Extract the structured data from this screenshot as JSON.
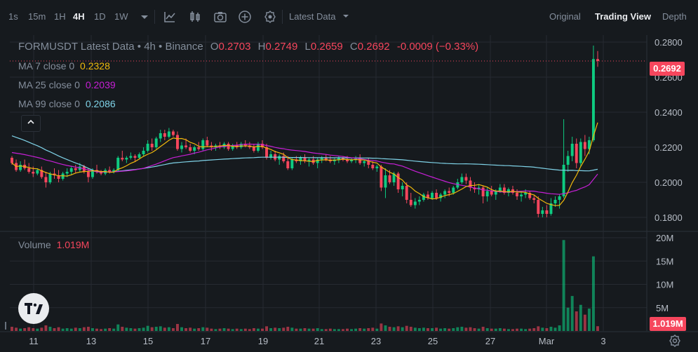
{
  "toolbar": {
    "intervals": [
      "1s",
      "15m",
      "1H",
      "4H",
      "1D",
      "1W"
    ],
    "active_interval": "4H",
    "dropdown_icon": "chevron-down-icon",
    "tools": [
      "indicators-icon",
      "candle-type-icon",
      "camera-icon",
      "add-icon",
      "settings-circle-icon"
    ],
    "data_select": "Latest Data",
    "views": [
      "Original",
      "Trading View",
      "Depth"
    ],
    "active_view": "Trading View"
  },
  "legend": {
    "symbol": "FORMUSDT Latest Data",
    "timeframe": "4h",
    "exchange": "Binance",
    "o_label": "O",
    "o_value": "0.2703",
    "h_label": "H",
    "h_value": "0.2749",
    "l_label": "L",
    "l_value": "0.2659",
    "c_label": "C",
    "c_value": "0.2692",
    "change": "-0.0009 (−0.33%)"
  },
  "ma": [
    {
      "label": "MA 7 close 0",
      "value": "0.2328",
      "color": "#f0b90b"
    },
    {
      "label": "MA 25 close 0",
      "value": "0.2039",
      "color": "#c71fd6"
    },
    {
      "label": "MA 99 close 0",
      "value": "0.2086",
      "color": "#7fd3e8"
    }
  ],
  "volume": {
    "label": "Volume",
    "value": "1.019M"
  },
  "price_tag": "0.2692",
  "volume_tag": "1.019M",
  "logo": "TV",
  "chart_data": {
    "type": "candlestick",
    "price_axis": {
      "ticks": [
        "0.2800",
        "0.2600",
        "0.2400",
        "0.2200",
        "0.2000",
        "0.1800"
      ],
      "min": 0.172,
      "max": 0.284
    },
    "volume_axis": {
      "ticks": [
        "20M",
        "15M",
        "10M",
        "5M"
      ],
      "max": 20
    },
    "x_ticks": [
      "11",
      "13",
      "15",
      "17",
      "19",
      "21",
      "23",
      "25",
      "27",
      "Mar",
      "3"
    ],
    "up_color": "#0ecb81",
    "down_color": "#f6465d",
    "candles": [
      [
        0.214,
        0.215,
        0.21,
        0.211,
        0.9
      ],
      [
        0.211,
        0.213,
        0.206,
        0.207,
        0.7
      ],
      [
        0.207,
        0.212,
        0.206,
        0.21,
        0.5
      ],
      [
        0.21,
        0.213,
        0.207,
        0.208,
        0.6
      ],
      [
        0.208,
        0.211,
        0.205,
        0.206,
        0.8
      ],
      [
        0.206,
        0.209,
        0.203,
        0.205,
        0.6
      ],
      [
        0.205,
        0.208,
        0.204,
        0.207,
        0.5
      ],
      [
        0.207,
        0.209,
        0.202,
        0.203,
        0.7
      ],
      [
        0.203,
        0.206,
        0.197,
        0.2,
        1.2
      ],
      [
        0.2,
        0.206,
        0.199,
        0.205,
        0.9
      ],
      [
        0.205,
        0.208,
        0.202,
        0.204,
        0.6
      ],
      [
        0.204,
        0.207,
        0.2,
        0.202,
        0.8
      ],
      [
        0.202,
        0.206,
        0.201,
        0.205,
        0.5
      ],
      [
        0.205,
        0.208,
        0.203,
        0.206,
        0.6
      ],
      [
        0.206,
        0.209,
        0.204,
        0.208,
        0.5
      ],
      [
        0.208,
        0.21,
        0.205,
        0.207,
        0.7
      ],
      [
        0.207,
        0.211,
        0.206,
        0.209,
        0.6
      ],
      [
        0.209,
        0.21,
        0.205,
        0.206,
        0.8
      ],
      [
        0.206,
        0.208,
        0.2,
        0.203,
        0.9
      ],
      [
        0.203,
        0.208,
        0.202,
        0.207,
        0.6
      ],
      [
        0.207,
        0.21,
        0.205,
        0.206,
        0.5
      ],
      [
        0.206,
        0.207,
        0.204,
        0.205,
        0.4
      ],
      [
        0.205,
        0.208,
        0.204,
        0.207,
        0.5
      ],
      [
        0.207,
        0.209,
        0.205,
        0.206,
        0.6
      ],
      [
        0.206,
        0.208,
        0.205,
        0.207,
        0.5
      ],
      [
        0.207,
        0.215,
        0.206,
        0.214,
        1.4
      ],
      [
        0.214,
        0.218,
        0.212,
        0.213,
        0.9
      ],
      [
        0.213,
        0.215,
        0.211,
        0.214,
        0.7
      ],
      [
        0.214,
        0.217,
        0.213,
        0.215,
        0.6
      ],
      [
        0.215,
        0.216,
        0.212,
        0.214,
        0.5
      ],
      [
        0.214,
        0.217,
        0.213,
        0.216,
        0.6
      ],
      [
        0.216,
        0.22,
        0.215,
        0.218,
        0.7
      ],
      [
        0.218,
        0.224,
        0.217,
        0.222,
        1.1
      ],
      [
        0.222,
        0.225,
        0.218,
        0.22,
        0.8
      ],
      [
        0.22,
        0.226,
        0.219,
        0.225,
        0.9
      ],
      [
        0.225,
        0.23,
        0.223,
        0.228,
        1.0
      ],
      [
        0.228,
        0.23,
        0.224,
        0.226,
        0.7
      ],
      [
        0.226,
        0.231,
        0.225,
        0.229,
        0.8
      ],
      [
        0.229,
        0.23,
        0.226,
        0.227,
        0.6
      ],
      [
        0.227,
        0.229,
        0.218,
        0.219,
        1.5
      ],
      [
        0.219,
        0.223,
        0.217,
        0.221,
        0.8
      ],
      [
        0.221,
        0.225,
        0.219,
        0.22,
        0.6
      ],
      [
        0.22,
        0.222,
        0.217,
        0.218,
        0.7
      ],
      [
        0.218,
        0.221,
        0.216,
        0.22,
        0.5
      ],
      [
        0.22,
        0.223,
        0.218,
        0.219,
        0.6
      ],
      [
        0.219,
        0.225,
        0.218,
        0.224,
        0.8
      ],
      [
        0.224,
        0.226,
        0.22,
        0.221,
        0.7
      ],
      [
        0.221,
        0.223,
        0.218,
        0.22,
        0.5
      ],
      [
        0.22,
        0.222,
        0.218,
        0.221,
        0.4
      ],
      [
        0.221,
        0.223,
        0.219,
        0.22,
        0.5
      ],
      [
        0.22,
        0.223,
        0.219,
        0.222,
        0.6
      ],
      [
        0.222,
        0.223,
        0.218,
        0.219,
        0.5
      ],
      [
        0.219,
        0.222,
        0.218,
        0.221,
        0.4
      ],
      [
        0.221,
        0.223,
        0.219,
        0.22,
        0.5
      ],
      [
        0.22,
        0.223,
        0.219,
        0.222,
        0.4
      ],
      [
        0.222,
        0.224,
        0.22,
        0.221,
        0.5
      ],
      [
        0.221,
        0.223,
        0.219,
        0.22,
        0.4
      ],
      [
        0.22,
        0.222,
        0.217,
        0.218,
        0.6
      ],
      [
        0.218,
        0.223,
        0.217,
        0.222,
        0.5
      ],
      [
        0.222,
        0.224,
        0.219,
        0.22,
        0.5
      ],
      [
        0.22,
        0.222,
        0.213,
        0.214,
        1.0
      ],
      [
        0.214,
        0.218,
        0.213,
        0.216,
        0.6
      ],
      [
        0.216,
        0.218,
        0.212,
        0.213,
        0.7
      ],
      [
        0.213,
        0.216,
        0.21,
        0.215,
        0.6
      ],
      [
        0.215,
        0.217,
        0.211,
        0.212,
        0.7
      ],
      [
        0.212,
        0.215,
        0.207,
        0.208,
        0.9
      ],
      [
        0.208,
        0.214,
        0.207,
        0.213,
        0.7
      ],
      [
        0.213,
        0.215,
        0.211,
        0.212,
        0.5
      ],
      [
        0.212,
        0.215,
        0.21,
        0.214,
        0.5
      ],
      [
        0.214,
        0.216,
        0.211,
        0.212,
        0.6
      ],
      [
        0.212,
        0.214,
        0.209,
        0.213,
        0.5
      ],
      [
        0.213,
        0.215,
        0.21,
        0.211,
        0.5
      ],
      [
        0.211,
        0.214,
        0.208,
        0.213,
        0.6
      ],
      [
        0.213,
        0.215,
        0.211,
        0.214,
        0.4
      ],
      [
        0.214,
        0.216,
        0.212,
        0.213,
        0.4
      ],
      [
        0.213,
        0.215,
        0.211,
        0.212,
        0.5
      ],
      [
        0.212,
        0.214,
        0.21,
        0.213,
        0.4
      ],
      [
        0.213,
        0.215,
        0.211,
        0.214,
        0.4
      ],
      [
        0.214,
        0.215,
        0.212,
        0.213,
        0.4
      ],
      [
        0.213,
        0.215,
        0.211,
        0.212,
        0.5
      ],
      [
        0.212,
        0.214,
        0.211,
        0.213,
        0.4
      ],
      [
        0.213,
        0.215,
        0.211,
        0.214,
        0.5
      ],
      [
        0.214,
        0.216,
        0.21,
        0.211,
        0.6
      ],
      [
        0.211,
        0.213,
        0.209,
        0.212,
        0.5
      ],
      [
        0.212,
        0.214,
        0.208,
        0.21,
        0.6
      ],
      [
        0.21,
        0.212,
        0.207,
        0.208,
        0.7
      ],
      [
        0.208,
        0.21,
        0.206,
        0.209,
        0.5
      ],
      [
        0.209,
        0.21,
        0.195,
        0.197,
        1.6
      ],
      [
        0.197,
        0.208,
        0.191,
        0.204,
        1.2
      ],
      [
        0.204,
        0.207,
        0.199,
        0.2,
        0.9
      ],
      [
        0.2,
        0.206,
        0.198,
        0.205,
        0.8
      ],
      [
        0.205,
        0.206,
        0.194,
        0.196,
        1.0
      ],
      [
        0.196,
        0.2,
        0.192,
        0.198,
        0.8
      ],
      [
        0.198,
        0.2,
        0.188,
        0.19,
        1.1
      ],
      [
        0.19,
        0.194,
        0.186,
        0.187,
        0.9
      ],
      [
        0.187,
        0.191,
        0.185,
        0.189,
        0.7
      ],
      [
        0.189,
        0.192,
        0.187,
        0.19,
        0.6
      ],
      [
        0.19,
        0.194,
        0.189,
        0.193,
        0.7
      ],
      [
        0.193,
        0.195,
        0.19,
        0.191,
        0.6
      ],
      [
        0.191,
        0.195,
        0.19,
        0.194,
        0.6
      ],
      [
        0.194,
        0.196,
        0.19,
        0.191,
        0.7
      ],
      [
        0.191,
        0.194,
        0.189,
        0.193,
        0.5
      ],
      [
        0.193,
        0.196,
        0.191,
        0.195,
        0.6
      ],
      [
        0.195,
        0.197,
        0.192,
        0.194,
        0.5
      ],
      [
        0.194,
        0.198,
        0.193,
        0.197,
        0.6
      ],
      [
        0.197,
        0.202,
        0.196,
        0.2,
        0.8
      ],
      [
        0.2,
        0.205,
        0.199,
        0.203,
        0.9
      ],
      [
        0.203,
        0.205,
        0.199,
        0.201,
        0.7
      ],
      [
        0.201,
        0.203,
        0.195,
        0.197,
        0.8
      ],
      [
        0.197,
        0.2,
        0.194,
        0.196,
        0.6
      ],
      [
        0.196,
        0.199,
        0.193,
        0.197,
        0.5
      ],
      [
        0.197,
        0.198,
        0.188,
        0.192,
        0.9
      ],
      [
        0.192,
        0.197,
        0.189,
        0.195,
        0.6
      ],
      [
        0.195,
        0.198,
        0.192,
        0.193,
        0.5
      ],
      [
        0.193,
        0.196,
        0.19,
        0.195,
        0.5
      ],
      [
        0.195,
        0.199,
        0.194,
        0.197,
        0.6
      ],
      [
        0.197,
        0.199,
        0.193,
        0.194,
        0.5
      ],
      [
        0.194,
        0.197,
        0.192,
        0.196,
        0.4
      ],
      [
        0.196,
        0.198,
        0.193,
        0.194,
        0.4
      ],
      [
        0.194,
        0.196,
        0.19,
        0.192,
        0.5
      ],
      [
        0.192,
        0.195,
        0.189,
        0.193,
        0.5
      ],
      [
        0.193,
        0.196,
        0.191,
        0.194,
        0.4
      ],
      [
        0.194,
        0.195,
        0.19,
        0.191,
        0.5
      ],
      [
        0.191,
        0.193,
        0.188,
        0.19,
        0.6
      ],
      [
        0.19,
        0.192,
        0.18,
        0.182,
        1.0
      ],
      [
        0.182,
        0.186,
        0.18,
        0.184,
        0.7
      ],
      [
        0.184,
        0.187,
        0.18,
        0.182,
        0.6
      ],
      [
        0.182,
        0.191,
        0.181,
        0.188,
        0.9
      ],
      [
        0.188,
        0.192,
        0.186,
        0.19,
        0.7
      ],
      [
        0.19,
        0.193,
        0.185,
        0.192,
        1.2
      ],
      [
        0.192,
        0.236,
        0.191,
        0.21,
        19.5
      ],
      [
        0.21,
        0.218,
        0.206,
        0.215,
        5.0
      ],
      [
        0.215,
        0.226,
        0.212,
        0.222,
        7.5
      ],
      [
        0.222,
        0.225,
        0.208,
        0.211,
        4.2
      ],
      [
        0.211,
        0.225,
        0.209,
        0.223,
        5.6
      ],
      [
        0.223,
        0.227,
        0.215,
        0.219,
        3.5
      ],
      [
        0.219,
        0.226,
        0.216,
        0.224,
        4.8
      ],
      [
        0.224,
        0.278,
        0.223,
        0.2703,
        16.0
      ],
      [
        0.2703,
        0.2749,
        0.2659,
        0.2692,
        1.019
      ]
    ]
  }
}
